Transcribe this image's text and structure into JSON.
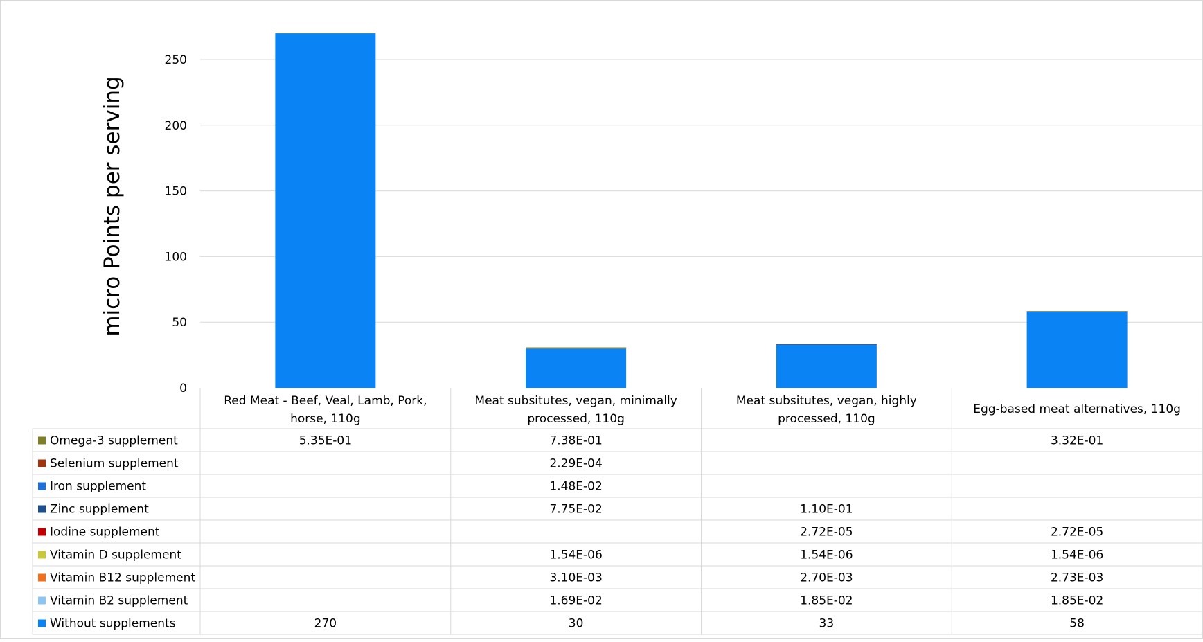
{
  "chart_data": {
    "type": "bar",
    "stacked": true,
    "title": "",
    "ylabel": "micro Points per serving",
    "xlabel": "",
    "ylim": [
      0,
      270
    ],
    "yticks": [
      0,
      50,
      100,
      150,
      200,
      250
    ],
    "ytick_labels": [
      "0",
      "50",
      "100",
      "150",
      "200",
      "250"
    ],
    "grid": true,
    "legend": "data-table",
    "categories": [
      [
        "Red Meat - Beef, Veal, Lamb, Pork,",
        "horse, 110g"
      ],
      [
        "Meat subsitutes, vegan, minimally",
        "processed, 110g"
      ],
      [
        "Meat subsitutes, vegan, highly",
        "processed, 110g"
      ],
      [
        "Egg-based meat alternatives, 110g"
      ]
    ],
    "series": [
      {
        "name": "Omega-3 supplement",
        "color": "#7F7F2A",
        "values": [
          0.535,
          0.738,
          null,
          0.332
        ],
        "labels": [
          "5.35E-01",
          "7.38E-01",
          "",
          "3.32E-01"
        ]
      },
      {
        "name": "Selenium supplement",
        "color": "#A0360F",
        "values": [
          null,
          0.000229,
          null,
          null
        ],
        "labels": [
          "",
          "2.29E-04",
          "",
          ""
        ]
      },
      {
        "name": "Iron supplement",
        "color": "#1E6FD9",
        "values": [
          null,
          0.0148,
          null,
          null
        ],
        "labels": [
          "",
          "1.48E-02",
          "",
          ""
        ]
      },
      {
        "name": "Zinc supplement",
        "color": "#1F4E8C",
        "values": [
          null,
          0.0775,
          0.11,
          null
        ],
        "labels": [
          "",
          "7.75E-02",
          "1.10E-01",
          ""
        ]
      },
      {
        "name": "Iodine supplement",
        "color": "#C00000",
        "values": [
          null,
          null,
          2.72e-05,
          2.72e-05
        ],
        "labels": [
          "",
          "",
          "2.72E-05",
          "2.72E-05"
        ]
      },
      {
        "name": "Vitamin D supplement",
        "color": "#C9C83A",
        "values": [
          null,
          1.54e-06,
          1.54e-06,
          1.54e-06
        ],
        "labels": [
          "",
          "1.54E-06",
          "1.54E-06",
          "1.54E-06"
        ]
      },
      {
        "name": "Vitamin B12 supplement",
        "color": "#F0701E",
        "values": [
          null,
          0.0031,
          0.0027,
          0.00273
        ],
        "labels": [
          "",
          "3.10E-03",
          "2.70E-03",
          "2.73E-03"
        ]
      },
      {
        "name": "Vitamin B2 supplement",
        "color": "#8EC4F0",
        "values": [
          null,
          0.0169,
          0.0185,
          0.0185
        ],
        "labels": [
          "",
          "1.69E-02",
          "1.85E-02",
          "1.85E-02"
        ]
      },
      {
        "name": "Without supplements",
        "color": "#0A84F5",
        "values": [
          270,
          30,
          33,
          58
        ],
        "labels": [
          "270",
          "30",
          "33",
          "58"
        ]
      }
    ]
  }
}
